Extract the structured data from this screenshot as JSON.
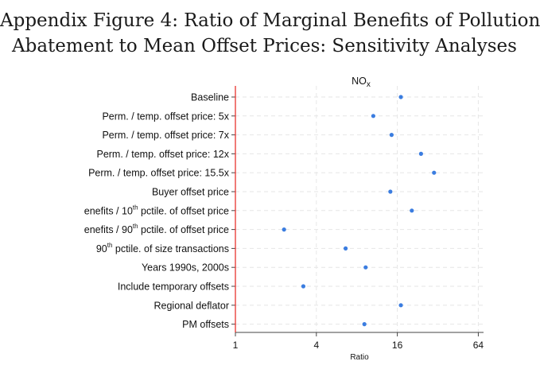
{
  "chart_data": {
    "type": "scatter",
    "title_lines": [
      "Appendix Figure 4:  Ratio of Marginal Benefits of Pollution",
      "Abatement to Mean Offset Prices:  Sensitivity  Analyses"
    ],
    "panel_title": "NO",
    "panel_title_sub": "x",
    "xlabel": "Ratio",
    "x_scale": "log2",
    "xlim": [
      1,
      70
    ],
    "xticks": [
      1,
      4,
      16,
      64
    ],
    "reference_line": {
      "x": 1,
      "color": "#e8322e"
    },
    "point_color": "#3b7de0",
    "categories": [
      {
        "label": "Baseline",
        "value": 17
      },
      {
        "label": "Perm. / temp. offset price: 5x",
        "value": 10.6
      },
      {
        "label": "Perm. / temp. offset price: 7x",
        "value": 14.5
      },
      {
        "label": "Perm. / temp. offset price: 12x",
        "value": 24
      },
      {
        "label": "Perm. / temp. offset price: 15.5x",
        "value": 30
      },
      {
        "label": "Buyer offset price",
        "value": 14.2
      },
      {
        "label": "enefits / 10",
        "sup": "th",
        "label_after": " pctile. of offset price",
        "value": 20.5
      },
      {
        "label": "enefits / 90",
        "sup": "th",
        "label_after": " pctile. of offset price",
        "value": 2.3
      },
      {
        "label": "90",
        "sup": "th",
        "label_after": " pctile. of size transactions",
        "value": 6.6
      },
      {
        "label": "Years 1990s, 2000s",
        "value": 9.3
      },
      {
        "label": "Include temporary offsets",
        "value": 3.2
      },
      {
        "label": "Regional deflator",
        "value": 17
      },
      {
        "label": "PM offsets",
        "value": 9.1
      }
    ]
  }
}
